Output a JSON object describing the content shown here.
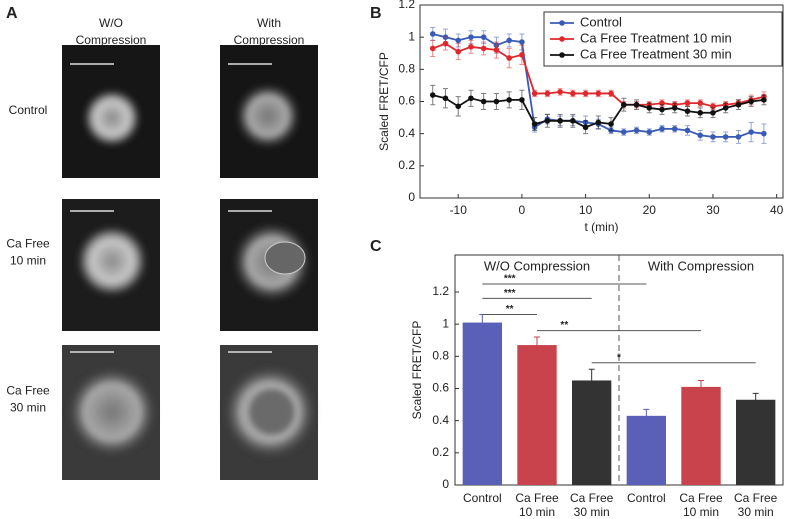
{
  "panel_a": {
    "label": "A",
    "columns": [
      "W/O Compression",
      "With Compression"
    ],
    "rows": [
      [
        "Control"
      ],
      [
        "Ca Free",
        "10 min"
      ],
      [
        "Ca Free",
        "30 min"
      ]
    ]
  },
  "chart_data": [
    {
      "type": "line",
      "label": "B",
      "y_label": "Scaled FRET/CFP",
      "x_label": "t (min)",
      "x": [
        -14,
        -12,
        -10,
        -8,
        -6,
        -4,
        -2,
        0,
        2,
        4,
        6,
        8,
        10,
        12,
        14,
        16,
        18,
        20,
        22,
        24,
        26,
        28,
        30,
        32,
        34,
        36,
        38
      ],
      "series": [
        {
          "name": "Control",
          "color": "#3a5bb5",
          "values": [
            1.02,
            1.0,
            0.98,
            1.0,
            1.0,
            0.95,
            0.98,
            0.97,
            0.44,
            0.49,
            0.48,
            0.48,
            0.47,
            0.46,
            0.42,
            0.41,
            0.42,
            0.41,
            0.43,
            0.43,
            0.42,
            0.39,
            0.38,
            0.38,
            0.38,
            0.41,
            0.4
          ],
          "errors": [
            0.04,
            0.05,
            0.04,
            0.04,
            0.04,
            0.05,
            0.04,
            0.05,
            0.03,
            0.03,
            0.03,
            0.03,
            0.04,
            0.03,
            0.02,
            0.02,
            0.02,
            0.02,
            0.02,
            0.02,
            0.03,
            0.03,
            0.03,
            0.03,
            0.04,
            0.06,
            0.06
          ]
        },
        {
          "name": "Ca Free Treatment 10 min",
          "color": "#e0282c",
          "values": [
            0.93,
            0.96,
            0.91,
            0.94,
            0.93,
            0.92,
            0.87,
            0.89,
            0.65,
            0.65,
            0.66,
            0.65,
            0.65,
            0.65,
            0.65,
            0.58,
            0.58,
            0.58,
            0.59,
            0.58,
            0.59,
            0.59,
            0.57,
            0.58,
            0.59,
            0.61,
            0.63
          ],
          "errors": [
            0.05,
            0.04,
            0.05,
            0.04,
            0.04,
            0.05,
            0.06,
            0.06,
            0.02,
            0.02,
            0.02,
            0.02,
            0.02,
            0.02,
            0.02,
            0.02,
            0.02,
            0.02,
            0.02,
            0.02,
            0.02,
            0.02,
            0.02,
            0.02,
            0.02,
            0.03,
            0.03
          ]
        },
        {
          "name": "Ca Free Treatment 30 min",
          "color": "#111111",
          "values": [
            0.64,
            0.62,
            0.57,
            0.62,
            0.6,
            0.6,
            0.61,
            0.61,
            0.46,
            0.48,
            0.48,
            0.48,
            0.44,
            0.47,
            0.46,
            0.58,
            0.58,
            0.56,
            0.55,
            0.56,
            0.54,
            0.53,
            0.53,
            0.56,
            0.58,
            0.6,
            0.61
          ],
          "errors": [
            0.06,
            0.06,
            0.06,
            0.05,
            0.05,
            0.05,
            0.05,
            0.06,
            0.04,
            0.04,
            0.04,
            0.04,
            0.04,
            0.04,
            0.04,
            0.04,
            0.03,
            0.03,
            0.03,
            0.03,
            0.03,
            0.03,
            0.03,
            0.03,
            0.03,
            0.03,
            0.03
          ]
        }
      ],
      "xlim": [
        -16,
        41
      ],
      "xticks": [
        -10,
        0,
        10,
        20,
        30,
        40
      ],
      "ylim": [
        0,
        1.2
      ],
      "yticks": [
        0,
        0.2,
        0.4,
        0.6,
        0.8,
        1,
        1.2
      ],
      "legend": "upper right"
    },
    {
      "type": "bar",
      "label": "C",
      "y_label": "Scaled FRET/CFP",
      "groups": [
        "W/O Compression",
        "With Compression"
      ],
      "categories": [
        [
          "Control"
        ],
        [
          "Ca Free",
          "10 min"
        ],
        [
          "Ca Free",
          "30 min"
        ],
        [
          "Control"
        ],
        [
          "Ca Free",
          "10 min"
        ],
        [
          "Ca Free",
          "30 min"
        ]
      ],
      "values": [
        1.01,
        0.87,
        0.65,
        0.43,
        0.61,
        0.53
      ],
      "errors": [
        0.05,
        0.05,
        0.07,
        0.04,
        0.04,
        0.04
      ],
      "colors": [
        "#5a5fb8",
        "#c8434b",
        "#333333",
        "#5a5fb8",
        "#c8434b",
        "#333333"
      ],
      "significance": [
        {
          "from": 0,
          "to": 3,
          "label": "***",
          "level": 1.25
        },
        {
          "from": 0,
          "to": 2,
          "label": "***",
          "level": 1.16
        },
        {
          "from": 0,
          "to": 1,
          "label": "**",
          "level": 1.06
        },
        {
          "from": 1,
          "to": 4,
          "label": "**",
          "level": 0.96
        },
        {
          "from": 2,
          "to": 5,
          "label": "*",
          "level": 0.76
        }
      ],
      "ylim": [
        0,
        1.43
      ],
      "yticks": [
        0,
        0.2,
        0.4,
        0.6,
        0.8,
        1,
        1.2
      ]
    }
  ]
}
